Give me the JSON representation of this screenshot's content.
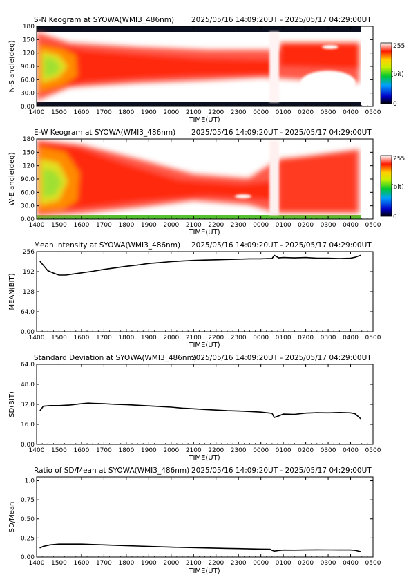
{
  "panels": [
    {
      "title_left": "S-N Keogram at SYOWA(WMI3_486nm)",
      "title_right": "2025/05/16 14:09:20UT - 2025/05/17 04:29:00UT",
      "ylabel": "N-S angle(deg)",
      "xlabel": "TIME(UT)"
    },
    {
      "title_left": "E-W Keogram at SYOWA(WMI3_486nm)",
      "title_right": "2025/05/16 14:09:20UT - 2025/05/17 04:29:00UT",
      "ylabel": "W-E angle(deg)",
      "xlabel": "TIME(UT)"
    },
    {
      "title_left": "Mean intensity at SYOWA(WMI3_486nm)",
      "title_right": "2025/05/16 14:09:20UT - 2025/05/17 04:29:00UT",
      "ylabel": "MEAN(BIT)",
      "xlabel": "TIME(UT)"
    },
    {
      "title_left": "Standard Deviation at SYOWA(WMI3_486nm)",
      "title_right": "2025/05/16 14:09:20UT - 2025/05/17 04:29:00UT",
      "ylabel": "SD(BIT)",
      "xlabel": "TIME(UT)"
    },
    {
      "title_left": "Ratio of SD/Mean at SYOWA(WMI3_486nm)",
      "title_right": "2025/05/16 14:09:20UT - 2025/05/17 04:29:00UT",
      "ylabel": "SD/Mean",
      "xlabel": "TIME(UT)"
    }
  ],
  "colorbar": {
    "max_label": "255",
    "unit_label": "(bit)",
    "min_label": "0"
  },
  "chart_data": [
    {
      "type": "heatmap",
      "title": "S-N Keogram at SYOWA(WMI3_486nm)",
      "xlabel": "TIME(UT)",
      "ylabel": "N-S angle(deg)",
      "x_ticks": [
        "1400",
        "1500",
        "1600",
        "1700",
        "1800",
        "1900",
        "2000",
        "2100",
        "2200",
        "2300",
        "0000",
        "0100",
        "0200",
        "0300",
        "0400",
        "0500"
      ],
      "y_ticks": [
        "0.00",
        "30.0",
        "60.0",
        "90.0",
        "120",
        "150",
        "180"
      ],
      "xlim_hours": [
        14.0,
        29.0
      ],
      "ylim": [
        0,
        180
      ],
      "colorscale": "black-blue-green-yellow-red-white",
      "clim": [
        0,
        255
      ]
    },
    {
      "type": "heatmap",
      "title": "E-W Keogram at SYOWA(WMI3_486nm)",
      "xlabel": "TIME(UT)",
      "ylabel": "W-E angle(deg)",
      "x_ticks": [
        "1400",
        "1500",
        "1600",
        "1700",
        "1800",
        "1900",
        "2000",
        "2100",
        "2200",
        "2300",
        "0000",
        "0100",
        "0200",
        "0300",
        "0400",
        "0500"
      ],
      "y_ticks": [
        "0.00",
        "30.0",
        "60.0",
        "90.0",
        "120",
        "150",
        "180"
      ],
      "xlim_hours": [
        14.0,
        29.0
      ],
      "ylim": [
        0,
        180
      ],
      "colorscale": "black-blue-green-yellow-red-white",
      "clim": [
        0,
        255
      ]
    },
    {
      "type": "line",
      "title": "Mean intensity at SYOWA(WMI3_486nm)",
      "xlabel": "TIME(UT)",
      "ylabel": "MEAN(BIT)",
      "x_ticks": [
        "1400",
        "1500",
        "1600",
        "1700",
        "1800",
        "1900",
        "2000",
        "2100",
        "2200",
        "2300",
        "0000",
        "0100",
        "0200",
        "0300",
        "0400",
        "0500"
      ],
      "y_ticks": [
        "0.00",
        "64.0",
        "128",
        "192",
        "256"
      ],
      "xlim_hours": [
        14.0,
        29.0
      ],
      "ylim": [
        0,
        256
      ],
      "x_hours": [
        14.15,
        14.3,
        14.5,
        14.8,
        15.0,
        15.3,
        15.6,
        16.0,
        16.5,
        17.0,
        17.5,
        18.0,
        18.5,
        19.0,
        19.5,
        20.0,
        20.5,
        21.0,
        21.5,
        22.0,
        22.5,
        23.0,
        23.5,
        24.0,
        24.3,
        24.5,
        24.6,
        24.8,
        25.0,
        25.5,
        26.0,
        26.5,
        27.0,
        27.5,
        28.0,
        28.2,
        28.45
      ],
      "y": [
        225,
        212,
        195,
        186,
        181,
        181,
        184,
        188,
        193,
        199,
        204,
        209,
        213,
        218,
        221,
        224,
        226,
        228,
        229,
        230,
        231,
        232,
        233,
        233,
        234,
        234,
        244,
        236,
        237,
        236,
        237,
        235,
        235,
        234,
        235,
        238,
        244
      ]
    },
    {
      "type": "line",
      "title": "Standard Deviation at SYOWA(WMI3_486nm)",
      "xlabel": "TIME(UT)",
      "ylabel": "SD(BIT)",
      "x_ticks": [
        "1400",
        "1500",
        "1600",
        "1700",
        "1800",
        "1900",
        "2000",
        "2100",
        "2200",
        "2300",
        "0000",
        "0100",
        "0200",
        "0300",
        "0400",
        "0500"
      ],
      "y_ticks": [
        "0.00",
        "16.0",
        "32.0",
        "48.0",
        "64.0"
      ],
      "xlim_hours": [
        14.0,
        29.0
      ],
      "ylim": [
        0,
        64
      ],
      "x_hours": [
        14.15,
        14.3,
        14.6,
        15.0,
        15.5,
        16.0,
        16.3,
        16.5,
        17.0,
        17.5,
        18.0,
        18.5,
        19.0,
        19.5,
        20.0,
        20.5,
        21.0,
        21.5,
        22.0,
        22.5,
        23.0,
        23.5,
        24.0,
        24.3,
        24.5,
        24.6,
        24.8,
        25.0,
        25.5,
        26.0,
        26.5,
        27.0,
        27.5,
        28.0,
        28.2,
        28.45
      ],
      "y": [
        27,
        30.5,
        31,
        31,
        31.5,
        32.5,
        33,
        32.8,
        32.5,
        32,
        31.8,
        31.3,
        30.8,
        30.3,
        29.8,
        29,
        28.5,
        28,
        27.5,
        27,
        26.7,
        26.3,
        25.8,
        25.2,
        24.8,
        21.5,
        22.8,
        24.2,
        24,
        25,
        25.3,
        25.2,
        25.5,
        25.2,
        24.5,
        20.5
      ]
    },
    {
      "type": "line",
      "title": "Ratio of SD/Mean at SYOWA(WMI3_486nm)",
      "xlabel": "TIME(UT)",
      "ylabel": "SD/Mean",
      "x_ticks": [
        "1400",
        "1500",
        "1600",
        "1700",
        "1800",
        "1900",
        "2000",
        "2100",
        "2200",
        "2300",
        "0000",
        "0100",
        "0200",
        "0300",
        "0400",
        "0500"
      ],
      "y_ticks": [
        "0.00",
        "0.25",
        "0.50",
        "0.75",
        "1.0"
      ],
      "xlim_hours": [
        14.0,
        29.0
      ],
      "ylim": [
        0,
        1.05
      ],
      "x_hours": [
        14.15,
        14.3,
        14.6,
        15.0,
        15.5,
        16.0,
        16.5,
        17.0,
        17.5,
        18.0,
        18.5,
        19.0,
        19.5,
        20.0,
        20.5,
        21.0,
        21.5,
        22.0,
        22.5,
        23.0,
        23.5,
        24.0,
        24.4,
        24.5,
        24.6,
        24.8,
        25.0,
        25.5,
        26.0,
        26.5,
        27.0,
        27.5,
        28.0,
        28.2,
        28.45
      ],
      "y": [
        0.12,
        0.14,
        0.16,
        0.17,
        0.17,
        0.17,
        0.165,
        0.16,
        0.155,
        0.15,
        0.145,
        0.14,
        0.135,
        0.13,
        0.127,
        0.124,
        0.12,
        0.117,
        0.114,
        0.111,
        0.108,
        0.105,
        0.104,
        0.09,
        0.08,
        0.088,
        0.093,
        0.092,
        0.094,
        0.096,
        0.095,
        0.094,
        0.094,
        0.09,
        0.072
      ]
    }
  ]
}
